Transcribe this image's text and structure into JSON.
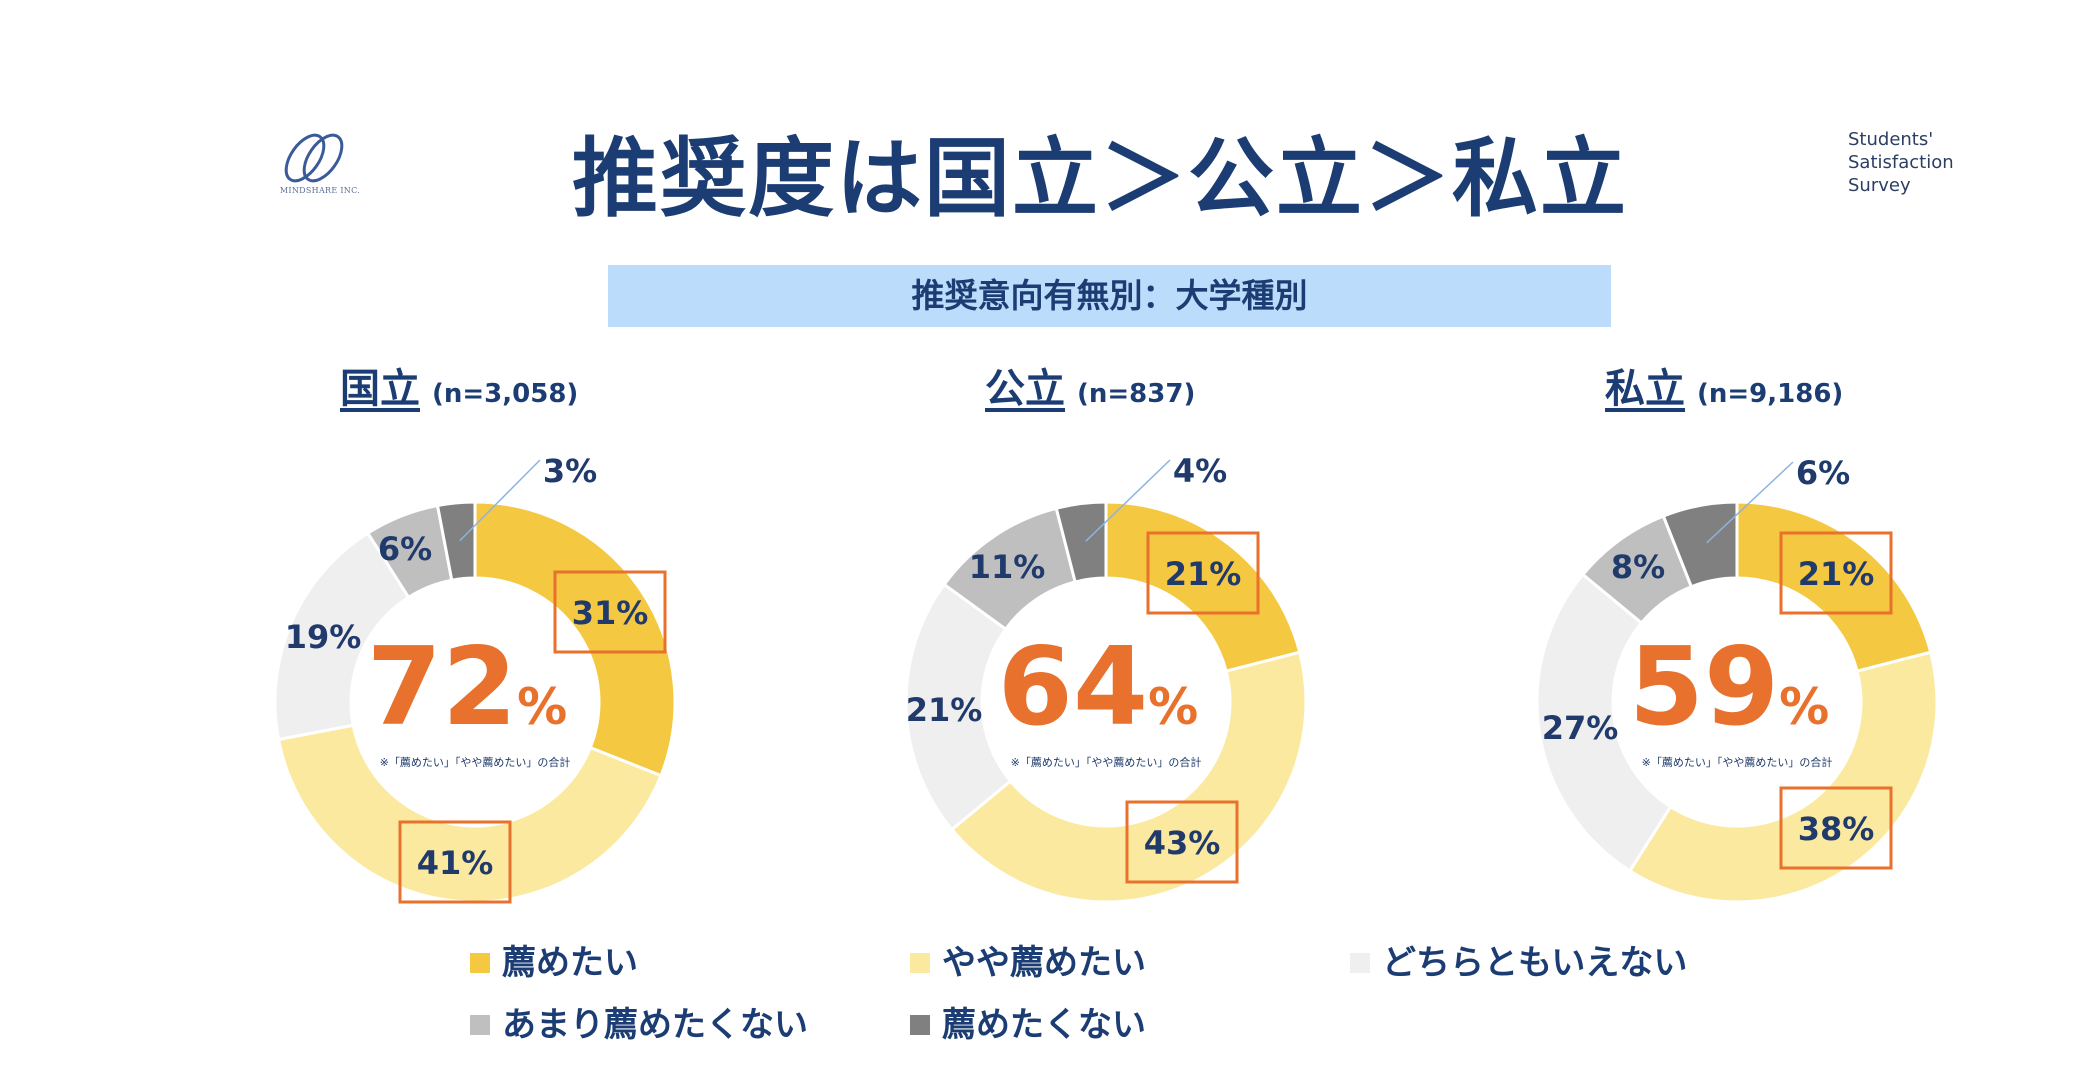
{
  "header": {
    "title": "推奨度は国立＞公立＞私立",
    "subtitle": "推奨意向有無別：大学種別",
    "logo_text": "MINDSHARE INC.",
    "survey_lines": [
      "Students'",
      "Satisfaction",
      "Survey"
    ]
  },
  "chart_data": [
    {
      "type": "pie",
      "name": "国立",
      "n_label": "(n=3,058)",
      "total_value": "72",
      "total_unit": "%",
      "note": "※「薦めたい」「やや薦めたい」の合計",
      "categories": [
        "薦めたい",
        "やや薦めたい",
        "どちらともいえない",
        "あまり薦めたくない",
        "薦めたくない"
      ],
      "values": [
        31,
        41,
        19,
        6,
        3
      ],
      "labels": [
        "31%",
        "41%",
        "19%",
        "6%",
        "3%"
      ],
      "highlighted": [
        true,
        true,
        false,
        false,
        false
      ]
    },
    {
      "type": "pie",
      "name": "公立",
      "n_label": "(n=837)",
      "total_value": "64",
      "total_unit": "%",
      "note": "※「薦めたい」「やや薦めたい」の合計",
      "categories": [
        "薦めたい",
        "やや薦めたい",
        "どちらともいえない",
        "あまり薦めたくない",
        "薦めたくない"
      ],
      "values": [
        21,
        43,
        21,
        11,
        4
      ],
      "labels": [
        "21%",
        "43%",
        "21%",
        "11%",
        "4%"
      ],
      "highlighted": [
        true,
        true,
        false,
        false,
        false
      ]
    },
    {
      "type": "pie",
      "name": "私立",
      "n_label": "(n=9,186)",
      "total_value": "59",
      "total_unit": "%",
      "note": "※「薦めたい」「やや薦めたい」の合計",
      "categories": [
        "薦めたい",
        "やや薦めたい",
        "どちらともいえない",
        "あまり薦めたくない",
        "薦めたくない"
      ],
      "values": [
        21,
        38,
        27,
        8,
        6
      ],
      "labels": [
        "21%",
        "38%",
        "27%",
        "8%",
        "6%"
      ],
      "highlighted": [
        true,
        true,
        false,
        false,
        false
      ]
    }
  ],
  "legend": [
    {
      "label": "薦めたい",
      "color": "#f5c842"
    },
    {
      "label": "やや薦めたい",
      "color": "#fbe9a0"
    },
    {
      "label": "どちらともいえない",
      "color": "#efefef"
    },
    {
      "label": "あまり薦めたくない",
      "color": "#bfbfbf"
    },
    {
      "label": "薦めたくない",
      "color": "#808080"
    }
  ],
  "colors": {
    "segments": [
      "#f5c842",
      "#fbe9a0",
      "#efefef",
      "#bfbfbf",
      "#808080"
    ],
    "highlight_box": "#e8712e",
    "total_text": "#e8712e",
    "label_text": "#1f3a6b"
  }
}
